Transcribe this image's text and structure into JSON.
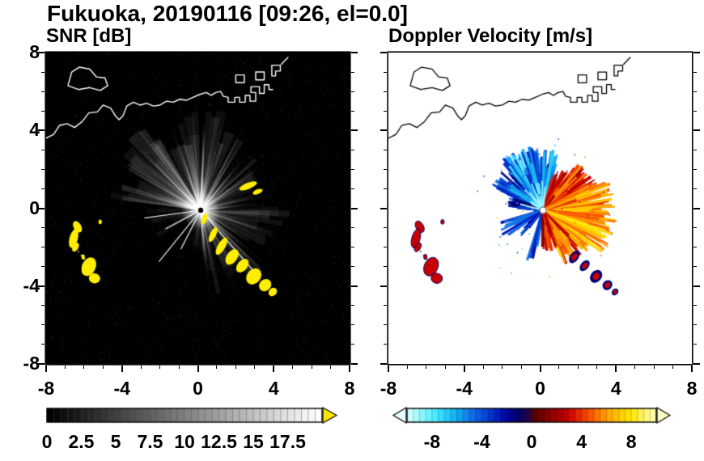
{
  "title": "Fukuoka, 20190116 [09:26, el=0.0]",
  "panels": {
    "snr": {
      "subtitle": "SNR [dB]",
      "bg": "#000000",
      "axis": {
        "xmin": -8,
        "xmax": 8,
        "ymin": -8,
        "ymax": 8,
        "minor_step": 1,
        "xticks": {
          "values": [
            -8,
            -4,
            0,
            4,
            8
          ],
          "labels": [
            "-8",
            "-4",
            "0",
            "4",
            "8"
          ]
        },
        "yticks": {
          "values": [
            8,
            4,
            0,
            -4,
            -8
          ],
          "labels": [
            "8",
            "4",
            "0",
            "-4",
            "-8"
          ]
        }
      },
      "colorbar": {
        "min": 0,
        "max": 20,
        "cells": 40,
        "labels": {
          "values": [
            0,
            2.5,
            5,
            7.5,
            10,
            12.5,
            15,
            17.5
          ],
          "texts": [
            "0",
            "2.5",
            "5",
            "7.5",
            "10",
            "12.5",
            "15",
            "17.5"
          ]
        },
        "start_color": "#000000",
        "end_color": "#ffffff",
        "arrow_color": "#ffe800"
      }
    },
    "velocity": {
      "subtitle": "Doppler Velocity [m/s]",
      "bg": "#ffffff",
      "axis": {
        "xmin": -8,
        "xmax": 8,
        "ymin": -8,
        "ymax": 8,
        "minor_step": 1,
        "xticks": {
          "values": [
            -8,
            -4,
            0,
            4,
            8
          ],
          "labels": [
            "-8",
            "-4",
            "0",
            "4",
            "8"
          ]
        },
        "yticks": {
          "values": [
            8,
            4,
            0,
            -4,
            -8
          ],
          "labels": [
            "8",
            "4",
            "0",
            "-4",
            "-8"
          ]
        }
      },
      "colorbar": {
        "min": -10,
        "max": 10,
        "cells": 40,
        "labels": {
          "values": [
            -8,
            -4,
            0,
            4,
            8
          ],
          "texts": [
            "-8",
            "-4",
            "0",
            "4",
            "8"
          ]
        },
        "left_arrow_color": "#e6ffff",
        "right_arrow_color": "#ffffc8",
        "stops": [
          [
            -10,
            "#d8ffff"
          ],
          [
            -9,
            "#9cf8ff"
          ],
          [
            -8,
            "#5ceeff"
          ],
          [
            -7,
            "#28d4fa"
          ],
          [
            -6,
            "#14aaf0"
          ],
          [
            -5,
            "#1478e6"
          ],
          [
            -4,
            "#0a50dc"
          ],
          [
            -3,
            "#0028c8"
          ],
          [
            -2,
            "#0000a0"
          ],
          [
            -1,
            "#000064"
          ],
          [
            -0.2,
            "#28003c"
          ],
          [
            0.2,
            "#500000"
          ],
          [
            1,
            "#780000"
          ],
          [
            2,
            "#a00000"
          ],
          [
            3,
            "#c80000"
          ],
          [
            4,
            "#e63200"
          ],
          [
            5,
            "#ff6400"
          ],
          [
            6,
            "#ffa000"
          ],
          [
            7,
            "#ffc800"
          ],
          [
            8,
            "#ffe600"
          ],
          [
            9,
            "#fff46e"
          ],
          [
            10,
            "#ffffb4"
          ]
        ]
      }
    }
  },
  "chart_data": {
    "type": "heatmap",
    "description": "Dual-panel Doppler radar PPI display, Fukuoka, 2019-01-16 09:26, elevation 0.0 deg. Left panel: signal-to-noise ratio SNR (dB, 0 to 17.5+, grayscale, saturated echoes in yellow) as a radial fan on black. Right panel: Doppler velocity (m/s, -10 to +10; blue/cyan = negative toward NW sector, red/orange/yellow = positive in E-SE sector). Both axes are distance from the radar in km, -8 to 8. Coastline of Hakata Bay with island and harbor piers drawn across the top.",
    "center": [
      0.15,
      -0.1
    ],
    "coast": {
      "mainland": [
        [
          -8,
          3.6
        ],
        [
          -7.6,
          3.8
        ],
        [
          -7.3,
          4.25
        ],
        [
          -6.9,
          4.35
        ],
        [
          -6.5,
          4.15
        ],
        [
          -6.1,
          4.45
        ],
        [
          -5.75,
          4.9
        ],
        [
          -5.3,
          4.95
        ],
        [
          -5.0,
          5.3
        ],
        [
          -4.6,
          5.15
        ],
        [
          -4.35,
          4.75
        ],
        [
          -4.15,
          4.55
        ],
        [
          -3.95,
          4.75
        ],
        [
          -3.75,
          5.25
        ],
        [
          -3.4,
          5.45
        ],
        [
          -3.05,
          5.3
        ],
        [
          -2.7,
          5.4
        ],
        [
          -2.35,
          5.25
        ],
        [
          -2.0,
          5.3
        ],
        [
          -1.65,
          5.5
        ],
        [
          -1.3,
          5.45
        ],
        [
          -0.95,
          5.6
        ],
        [
          -0.6,
          5.55
        ],
        [
          -0.25,
          5.7
        ],
        [
          0.1,
          5.85
        ],
        [
          0.45,
          5.95
        ],
        [
          0.7,
          5.8
        ],
        [
          0.95,
          5.95
        ],
        [
          1.2,
          6.0
        ],
        [
          1.35,
          5.75
        ],
        [
          1.6,
          5.7
        ],
        [
          1.6,
          5.45
        ],
        [
          1.95,
          5.45
        ],
        [
          1.95,
          5.7
        ],
        [
          2.2,
          5.7
        ],
        [
          2.2,
          5.45
        ],
        [
          2.5,
          5.45
        ],
        [
          2.5,
          5.8
        ],
        [
          2.75,
          5.8
        ],
        [
          2.75,
          5.5
        ],
        [
          3.05,
          5.5
        ],
        [
          3.05,
          5.95
        ],
        [
          2.8,
          5.95
        ],
        [
          2.8,
          6.25
        ],
        [
          3.25,
          6.25
        ],
        [
          3.25,
          5.9
        ],
        [
          3.5,
          5.9
        ],
        [
          3.5,
          6.35
        ],
        [
          3.75,
          6.35
        ],
        [
          3.75,
          6.1
        ],
        [
          3.95,
          6.1
        ]
      ],
      "island": [
        [
          -6.85,
          6.3
        ],
        [
          -6.3,
          6.1
        ],
        [
          -5.7,
          6.2
        ],
        [
          -5.15,
          6.05
        ],
        [
          -4.75,
          6.3
        ],
        [
          -4.9,
          6.7
        ],
        [
          -5.35,
          6.75
        ],
        [
          -5.7,
          7.15
        ],
        [
          -6.25,
          7.25
        ],
        [
          -6.65,
          7.0
        ],
        [
          -6.85,
          6.3
        ]
      ],
      "blocks": [
        [
          [
            2.0,
            6.45
          ],
          [
            2.0,
            6.85
          ],
          [
            2.45,
            6.85
          ],
          [
            2.45,
            6.45
          ],
          [
            2.0,
            6.45
          ]
        ],
        [
          [
            3.05,
            6.6
          ],
          [
            3.05,
            7.0
          ],
          [
            3.5,
            7.0
          ],
          [
            3.5,
            6.6
          ],
          [
            3.05,
            6.6
          ]
        ],
        [
          [
            3.9,
            6.8
          ],
          [
            3.9,
            7.35
          ],
          [
            4.35,
            7.35
          ],
          [
            4.35,
            7.05
          ],
          [
            4.1,
            7.05
          ],
          [
            4.1,
            6.8
          ],
          [
            3.9,
            6.8
          ]
        ]
      ],
      "diag": [
        [
          4.4,
          7.4
        ],
        [
          4.75,
          7.75
        ]
      ]
    },
    "snr": {
      "seed": 11,
      "sectors": [
        {
          "az0": 78,
          "az1": 172,
          "n": 150,
          "amp": 0.55,
          "lmin": 1.2,
          "lmax": 5.4
        },
        {
          "az0": -88,
          "az1": 78,
          "n": 160,
          "amp": 0.42,
          "lmin": 1.0,
          "lmax": 4.8
        },
        {
          "az0": 172,
          "az1": 212,
          "n": 26,
          "amp": 0.28,
          "lmin": 0.6,
          "lmax": 3.0
        },
        {
          "az0": 240,
          "az1": 272,
          "n": 16,
          "amp": 0.22,
          "lmin": 0.6,
          "lmax": 2.4
        }
      ],
      "dark_wedges": [
        {
          "az0": 212,
          "az1": 240,
          "r": 6
        }
      ],
      "rays": [
        {
          "az": 231,
          "len": 3.5
        },
        {
          "az": 208,
          "len": 2.1
        },
        {
          "az": 243,
          "len": 2.3
        },
        {
          "az": -49,
          "len": 4.6
        },
        {
          "az": 188,
          "len": 3.0
        }
      ],
      "echo_color": "#ffee00"
    },
    "velocity": {
      "seed": 23,
      "sectors": [
        {
          "az0": 74,
          "az1": 100,
          "vel": -4.5,
          "var": 2.5,
          "rmax": 3.3,
          "n": 90
        },
        {
          "az0": 100,
          "az1": 130,
          "vel": -5.5,
          "var": 3.0,
          "rmax": 3.5,
          "n": 110
        },
        {
          "az0": 130,
          "az1": 156,
          "vel": -4.0,
          "var": 2.5,
          "rmax": 3.0,
          "n": 80
        },
        {
          "az0": 156,
          "az1": 176,
          "vel": -2.5,
          "var": 1.5,
          "rmax": 2.0,
          "n": 36
        },
        {
          "az0": 196,
          "az1": 216,
          "vel": -4.0,
          "var": 2.0,
          "rmax": 2.6,
          "n": 24
        },
        {
          "az0": 222,
          "az1": 234,
          "vel": -3.0,
          "var": 1.5,
          "rmax": 1.8,
          "n": 12
        },
        {
          "az0": 252,
          "az1": 262,
          "vel": -3.5,
          "var": 1.5,
          "rmax": 2.8,
          "n": 12
        },
        {
          "az0": 54,
          "az1": 74,
          "vel": 2.5,
          "var": 1.5,
          "rmax": 2.4,
          "n": 40
        },
        {
          "az0": 26,
          "az1": 54,
          "vel": 4.0,
          "var": 2.0,
          "rmax": 3.2,
          "n": 80
        },
        {
          "az0": -6,
          "az1": 26,
          "vel": 5.5,
          "var": 2.0,
          "rmax": 3.8,
          "n": 100
        },
        {
          "az0": -40,
          "az1": -6,
          "vel": 6.5,
          "var": 2.0,
          "rmax": 4.0,
          "n": 100
        },
        {
          "az0": -70,
          "az1": -40,
          "vel": 5.0,
          "var": 2.5,
          "rmax": 3.2,
          "n": 70
        },
        {
          "az0": -92,
          "az1": -70,
          "vel": 3.0,
          "var": 2.0,
          "rmax": 2.2,
          "n": 30
        }
      ],
      "neg_color_near": "#000078",
      "pos_color_near": "#c80000"
    },
    "echo_patches": {
      "west": [
        [
          -6.35,
          -0.95,
          0.2,
          0.32,
          -30
        ],
        [
          -6.55,
          -1.55,
          0.22,
          0.5,
          15
        ],
        [
          -6.45,
          -2.0,
          0.15,
          0.25,
          30
        ],
        [
          -6.05,
          -2.5,
          0.09,
          0.13,
          0
        ],
        [
          -5.75,
          -3.0,
          0.36,
          0.5,
          25
        ],
        [
          -5.45,
          -3.6,
          0.3,
          0.26,
          10
        ],
        [
          -5.15,
          -0.7,
          0.09,
          0.12,
          0
        ]
      ],
      "chain": [
        [
          0.35,
          -0.55,
          0.13,
          0.3,
          20
        ],
        [
          0.8,
          -1.35,
          0.16,
          0.42,
          25
        ],
        [
          1.25,
          -1.95,
          0.2,
          0.5,
          30
        ],
        [
          1.8,
          -2.5,
          0.28,
          0.45,
          35
        ],
        [
          2.35,
          -2.95,
          0.26,
          0.4,
          40
        ],
        [
          2.95,
          -3.5,
          0.36,
          0.45,
          40
        ],
        [
          3.55,
          -3.95,
          0.3,
          0.34,
          45
        ],
        [
          3.95,
          -4.3,
          0.2,
          0.24,
          45
        ]
      ],
      "upper": [
        [
          2.65,
          1.15,
          0.5,
          0.16,
          -22
        ],
        [
          3.15,
          0.85,
          0.28,
          0.12,
          -22
        ]
      ],
      "dotted_link": [
        [
          -6.5,
          -2.0
        ],
        [
          -5.85,
          -2.75
        ]
      ]
    }
  }
}
